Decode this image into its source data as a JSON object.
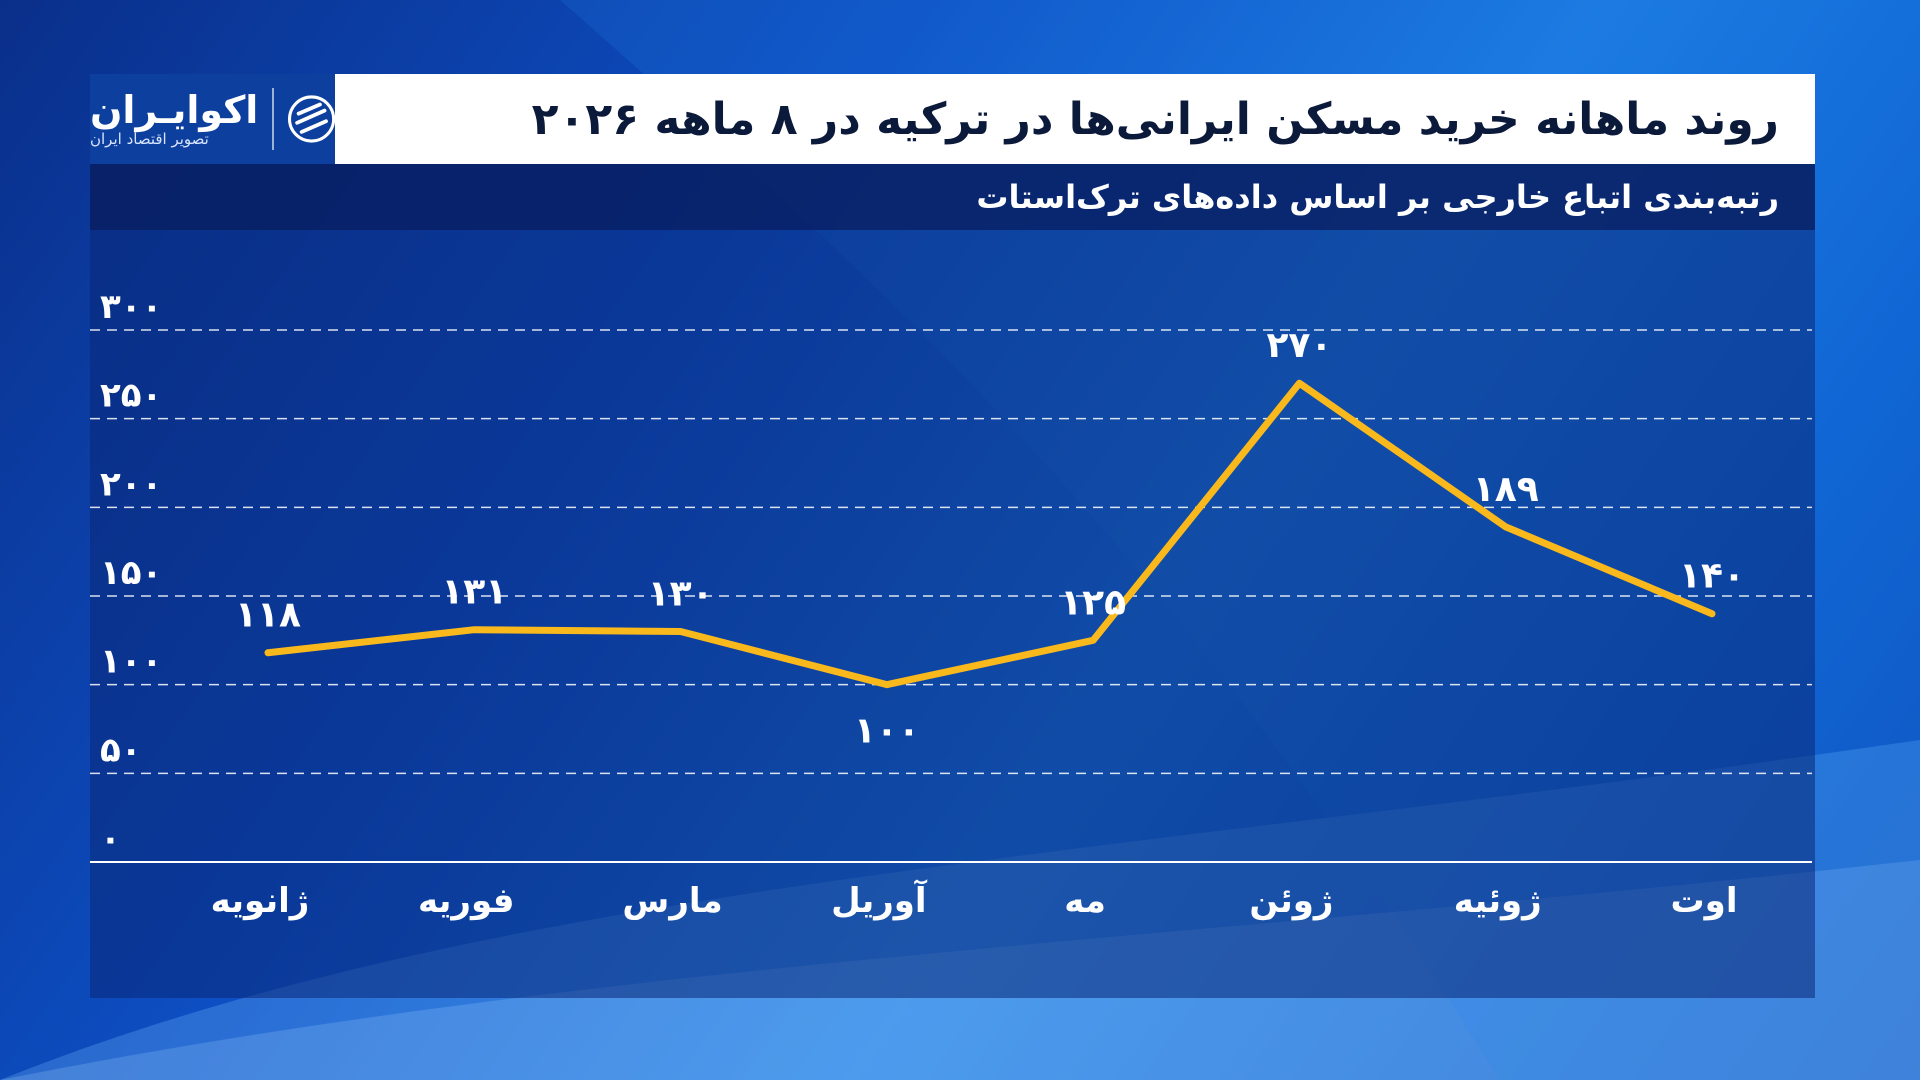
{
  "header": {
    "title": "روند ماهانه خرید مسکن ایرانی‌ها در ترکیه در ۸ ماهه ۲۰۲۶",
    "subtitle": "رتبه‌بندی اتباع خارجی بر اساس داده‌های ترک‌استات"
  },
  "logo": {
    "name": "اکوایـران",
    "tagline": "تصویر اقتصاد ایران",
    "icon": "ecoiran-logo-icon"
  },
  "colors": {
    "line": "#f9b81b",
    "grid": "#ffffff",
    "text": "#ffffff",
    "title": "#0b1a3a"
  },
  "chart_data": {
    "type": "line",
    "title": "روند ماهانه خرید مسکن ایرانی‌ها در ترکیه در ۸ ماهه ۲۰۲۶",
    "subtitle": "رتبه‌بندی اتباع خارجی بر اساس داده‌های ترک‌استات",
    "xlabel": "",
    "ylabel": "",
    "categories": [
      "ژانویه",
      "فوریه",
      "مارس",
      "آوریل",
      "مه",
      "ژوئن",
      "ژوئیه",
      "اوت"
    ],
    "values": [
      118,
      131,
      130,
      100,
      125,
      270,
      189,
      140
    ],
    "value_labels": [
      "۱۱۸",
      "۱۳۱",
      "۱۳۰",
      "۱۰۰",
      "۱۲۵",
      "۲۷۰",
      "۱۸۹",
      "۱۴۰"
    ],
    "ylim": [
      0,
      300
    ],
    "yticks": [
      0,
      50,
      100,
      150,
      200,
      250,
      300
    ],
    "ytick_labels": [
      "۰",
      "۵۰",
      "۱۰۰",
      "۱۵۰",
      "۲۰۰",
      "۲۵۰",
      "۳۰۰"
    ],
    "grid": true,
    "legend": "none"
  }
}
